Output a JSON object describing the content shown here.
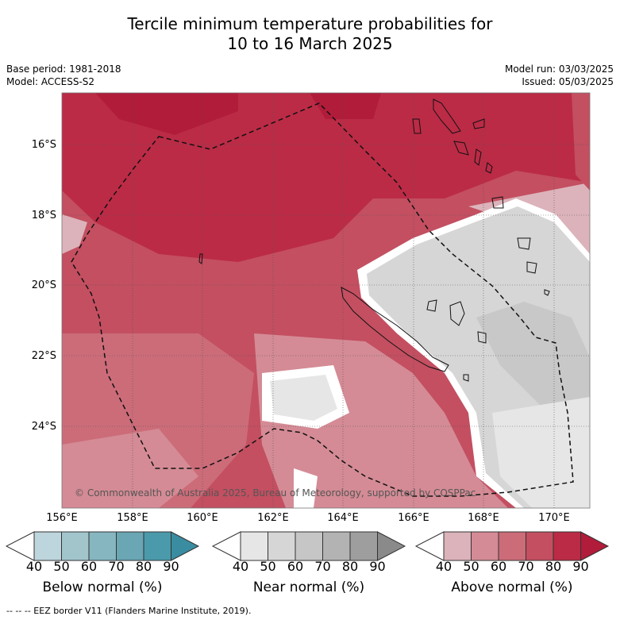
{
  "title": {
    "line1": "Tercile minimum temperature probabilities for",
    "line2": "10 to 16 March 2025"
  },
  "meta": {
    "base_period": "Base period: 1981-2018",
    "model": "Model: ACCESS-S2",
    "model_run": "Model run: 03/03/2025",
    "issued": "Issued: 05/03/2025"
  },
  "map": {
    "latitude_labels": [
      "16°S",
      "18°S",
      "20°S",
      "22°S",
      "24°S"
    ],
    "longitude_labels": [
      "156°E",
      "158°E",
      "160°E",
      "162°E",
      "164°E",
      "166°E",
      "168°E",
      "170°E"
    ],
    "copyright": "© Commonwealth of Australia 2025, Bureau of Meteorology, supported by COSPPac",
    "colors": {
      "above_80": "#bb2b46",
      "above_70": "#c34f61",
      "above_60": "#cc6c79",
      "above_50": "#d48b95",
      "above_40": "#dcb3ba",
      "near_40": "#e6e6e6",
      "near_50": "#d6d6d6",
      "near_60": "#c8c8c8",
      "above_90": "#b01c3a"
    }
  },
  "colorbars": [
    {
      "label": "Below normal (%)",
      "ticks": [
        "40",
        "50",
        "60",
        "70",
        "80",
        "90"
      ],
      "colors": [
        "#ffffff",
        "#bdd5dc",
        "#a2c5cc",
        "#86b6c0",
        "#6aa6b4",
        "#4a9aab",
        "#3a8da0"
      ]
    },
    {
      "label": "Near normal (%)",
      "ticks": [
        "40",
        "50",
        "60",
        "70",
        "80",
        "90"
      ],
      "colors": [
        "#ffffff",
        "#e6e6e6",
        "#d6d6d6",
        "#c6c6c6",
        "#b3b3b3",
        "#9e9e9e",
        "#8a8a8a"
      ]
    },
    {
      "label": "Above normal (%)",
      "ticks": [
        "40",
        "50",
        "60",
        "70",
        "80",
        "90"
      ],
      "colors": [
        "#ffffff",
        "#dcb3ba",
        "#d48b95",
        "#cc6c79",
        "#c34f61",
        "#bb2b46",
        "#b01c3a"
      ]
    }
  ],
  "footer": "--  --  -- EEZ border V11 (Flanders Marine Institute, 2019)."
}
